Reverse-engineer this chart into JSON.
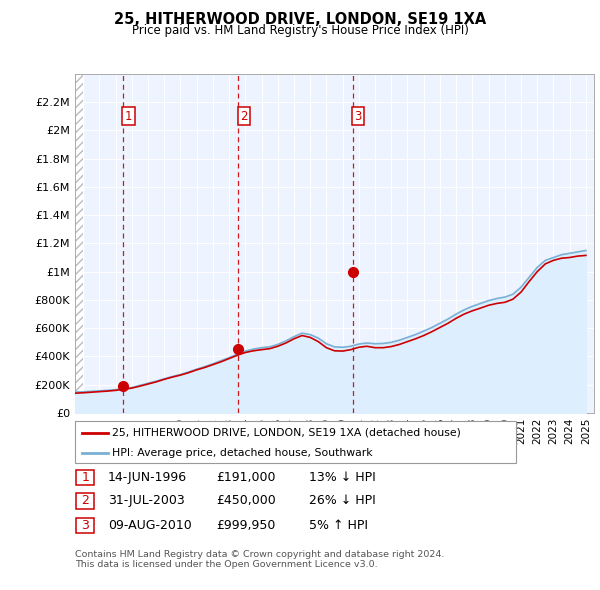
{
  "title": "25, HITHERWOOD DRIVE, LONDON, SE19 1XA",
  "subtitle": "Price paid vs. HM Land Registry's House Price Index (HPI)",
  "property_label": "25, HITHERWOOD DRIVE, LONDON, SE19 1XA (detached house)",
  "hpi_label": "HPI: Average price, detached house, Southwark",
  "footer": "Contains HM Land Registry data © Crown copyright and database right 2024.\nThis data is licensed under the Open Government Licence v3.0.",
  "transactions": [
    {
      "num": 1,
      "date": "14-JUN-1996",
      "price": "£191,000",
      "hpi": "13% ↓ HPI",
      "year": 1996.45
    },
    {
      "num": 2,
      "date": "31-JUL-2003",
      "price": "£450,000",
      "hpi": "26% ↓ HPI",
      "year": 2003.58
    },
    {
      "num": 3,
      "date": "09-AUG-2010",
      "price": "£999,950",
      "hpi": "5% ↑ HPI",
      "year": 2010.61
    }
  ],
  "price_color": "#cc0000",
  "hpi_color": "#7ab0d4",
  "hpi_fill_color": "#ddeeff",
  "vline_color": "#cc0000",
  "ylim": [
    0,
    2400000
  ],
  "yticks": [
    0,
    200000,
    400000,
    600000,
    800000,
    1000000,
    1200000,
    1400000,
    1600000,
    1800000,
    2000000,
    2200000
  ],
  "ytick_labels": [
    "£0",
    "£200K",
    "£400K",
    "£600K",
    "£800K",
    "£1M",
    "£1.2M",
    "£1.4M",
    "£1.6M",
    "£1.8M",
    "£2M",
    "£2.2M"
  ],
  "xlim_start": 1993.5,
  "xlim_end": 2025.5,
  "hpi_years": [
    1993.5,
    1994,
    1994.5,
    1995,
    1995.5,
    1996,
    1996.5,
    1997,
    1997.5,
    1998,
    1998.5,
    1999,
    1999.5,
    2000,
    2000.5,
    2001,
    2001.5,
    2002,
    2002.5,
    2003,
    2003.5,
    2004,
    2004.5,
    2005,
    2005.5,
    2006,
    2006.5,
    2007,
    2007.5,
    2008,
    2008.5,
    2009,
    2009.5,
    2010,
    2010.5,
    2011,
    2011.5,
    2012,
    2012.5,
    2013,
    2013.5,
    2014,
    2014.5,
    2015,
    2015.5,
    2016,
    2016.5,
    2017,
    2017.5,
    2018,
    2018.5,
    2019,
    2019.5,
    2020,
    2020.5,
    2021,
    2021.5,
    2022,
    2022.5,
    2023,
    2023.5,
    2024,
    2024.5,
    2025
  ],
  "hpi_values": [
    148000,
    150000,
    153000,
    157000,
    160000,
    165000,
    172000,
    180000,
    195000,
    210000,
    225000,
    242000,
    258000,
    272000,
    290000,
    310000,
    328000,
    348000,
    370000,
    392000,
    415000,
    438000,
    452000,
    462000,
    468000,
    485000,
    510000,
    540000,
    565000,
    555000,
    530000,
    490000,
    468000,
    465000,
    472000,
    488000,
    495000,
    490000,
    492000,
    500000,
    515000,
    535000,
    555000,
    580000,
    605000,
    635000,
    665000,
    700000,
    730000,
    755000,
    775000,
    795000,
    810000,
    820000,
    840000,
    890000,
    960000,
    1030000,
    1080000,
    1100000,
    1120000,
    1130000,
    1140000,
    1150000
  ],
  "price_years": [
    1993.5,
    1994,
    1994.5,
    1995,
    1995.5,
    1996,
    1996.5,
    1997,
    1997.5,
    1998,
    1998.5,
    1999,
    1999.5,
    2000,
    2000.5,
    2001,
    2001.5,
    2002,
    2002.5,
    2003,
    2003.5,
    2004,
    2004.5,
    2005,
    2005.5,
    2006,
    2006.5,
    2007,
    2007.5,
    2008,
    2008.5,
    2009,
    2009.5,
    2010,
    2010.5,
    2011,
    2011.5,
    2012,
    2012.5,
    2013,
    2013.5,
    2014,
    2014.5,
    2015,
    2015.5,
    2016,
    2016.5,
    2017,
    2017.5,
    2018,
    2018.5,
    2019,
    2019.5,
    2020,
    2020.5,
    2021,
    2021.5,
    2022,
    2022.5,
    2023,
    2023.5,
    2024,
    2024.5,
    2025
  ],
  "price_values": [
    140000,
    143000,
    147000,
    151000,
    155000,
    160000,
    168000,
    176000,
    190000,
    205000,
    220000,
    238000,
    254000,
    268000,
    285000,
    305000,
    322000,
    342000,
    362000,
    385000,
    408000,
    428000,
    440000,
    448000,
    455000,
    472000,
    495000,
    525000,
    548000,
    535000,
    505000,
    462000,
    440000,
    438000,
    448000,
    465000,
    472000,
    462000,
    462000,
    470000,
    485000,
    505000,
    525000,
    548000,
    575000,
    605000,
    635000,
    670000,
    700000,
    723000,
    742000,
    762000,
    775000,
    783000,
    805000,
    855000,
    930000,
    1000000,
    1055000,
    1080000,
    1095000,
    1100000,
    1110000,
    1115000
  ],
  "sale_prices": [
    191000,
    450000,
    999950
  ],
  "sale_years": [
    1996.45,
    2003.58,
    2010.61
  ],
  "chart_bg_color": "#eef4ff",
  "hatch_color": "#cccccc"
}
